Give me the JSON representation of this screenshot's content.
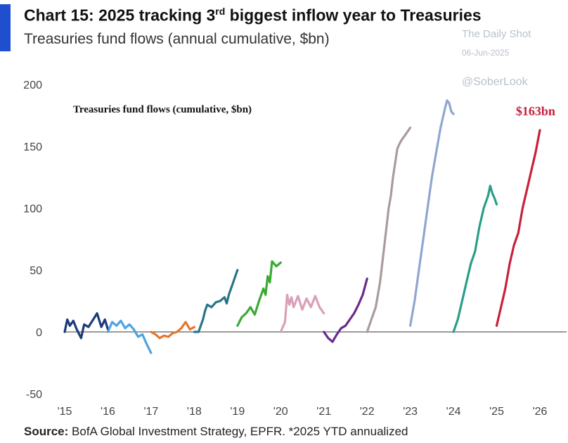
{
  "header": {
    "title_prefix": "Chart 15: 2025 tracking 3",
    "title_sup": "rd",
    "title_suffix": " biggest inflow year to Treasuries",
    "subtitle": "Treasuries fund flows (annual cumulative, $bn)"
  },
  "watermark": {
    "line1": "The Daily Shot",
    "line2": "06-Jun-2025",
    "line3": "@SoberLook"
  },
  "footer": {
    "source_label": "Source:",
    "source_text": " BofA Global Investment Strategy, EPFR. *2025 YTD annualized"
  },
  "chart_data": {
    "type": "line",
    "title": "Treasuries fund flows (cumulative, $bn)",
    "xlabel": "",
    "ylabel": "",
    "ylim": [
      -50,
      200
    ],
    "xlim": [
      2015,
      2026
    ],
    "yticks": [
      -50,
      0,
      50,
      100,
      150,
      200
    ],
    "xticks": [
      {
        "value": 2015,
        "label": "'15"
      },
      {
        "value": 2016,
        "label": "'16"
      },
      {
        "value": 2017,
        "label": "'17"
      },
      {
        "value": 2018,
        "label": "'18"
      },
      {
        "value": 2019,
        "label": "'19"
      },
      {
        "value": 2020,
        "label": "'20"
      },
      {
        "value": 2021,
        "label": "'21"
      },
      {
        "value": 2022,
        "label": "'22"
      },
      {
        "value": 2023,
        "label": "'23"
      },
      {
        "value": 2024,
        "label": "'24"
      },
      {
        "value": 2025,
        "label": "'25"
      },
      {
        "value": 2026,
        "label": "'26"
      }
    ],
    "grid": false,
    "zero_line": true,
    "annotation": {
      "text": "$163bn",
      "x": 2025.9,
      "y": 175,
      "color": "#c8203a"
    },
    "series": [
      {
        "color": "#1d3a7a",
        "x": [
          2015.0,
          2015.06,
          2015.12,
          2015.2,
          2015.28,
          2015.38,
          2015.45,
          2015.55,
          2015.66,
          2015.75,
          2015.85,
          2015.93,
          2016.0
        ],
        "y": [
          0,
          10,
          5,
          9,
          2,
          -5,
          6,
          4,
          10,
          15,
          4,
          10,
          2
        ]
      },
      {
        "color": "#4fa3e0",
        "x": [
          2016.0,
          2016.1,
          2016.2,
          2016.3,
          2016.4,
          2016.5,
          2016.6,
          2016.7,
          2016.8,
          2016.9,
          2017.0
        ],
        "y": [
          0,
          8,
          5,
          9,
          3,
          6,
          2,
          -4,
          -2,
          -10,
          -17
        ]
      },
      {
        "color": "#e6762b",
        "x": [
          2017.0,
          2017.1,
          2017.2,
          2017.3,
          2017.4,
          2017.5,
          2017.6,
          2017.7,
          2017.8,
          2017.9,
          2018.0
        ],
        "y": [
          0,
          -2,
          -5,
          -3,
          -4,
          -1,
          0,
          3,
          8,
          2,
          4
        ]
      },
      {
        "color": "#2a7489",
        "x": [
          2018.0,
          2018.1,
          2018.2,
          2018.25,
          2018.3,
          2018.4,
          2018.5,
          2018.6,
          2018.7,
          2018.75,
          2018.8,
          2018.9,
          2019.0
        ],
        "y": [
          0,
          0,
          10,
          17,
          22,
          20,
          24,
          25,
          28,
          23,
          30,
          40,
          50
        ]
      },
      {
        "color": "#3aaa35",
        "x": [
          2019.0,
          2019.1,
          2019.2,
          2019.3,
          2019.4,
          2019.5,
          2019.6,
          2019.65,
          2019.7,
          2019.75,
          2019.8,
          2019.9,
          2020.0
        ],
        "y": [
          5,
          12,
          15,
          20,
          14,
          25,
          35,
          30,
          45,
          40,
          57,
          53,
          56
        ]
      },
      {
        "color": "#d9a0b8",
        "x": [
          2020.0,
          2020.1,
          2020.15,
          2020.2,
          2020.25,
          2020.3,
          2020.4,
          2020.5,
          2020.6,
          2020.7,
          2020.8,
          2020.9,
          2021.0
        ],
        "y": [
          0,
          8,
          30,
          22,
          28,
          20,
          29,
          18,
          27,
          20,
          29,
          20,
          15
        ]
      },
      {
        "color": "#6a2a8a",
        "x": [
          2021.0,
          2021.1,
          2021.2,
          2021.3,
          2021.4,
          2021.5,
          2021.6,
          2021.7,
          2021.8,
          2021.9,
          2022.0
        ],
        "y": [
          0,
          -5,
          -8,
          -2,
          3,
          5,
          10,
          15,
          22,
          30,
          43
        ]
      },
      {
        "color": "#a89b9b",
        "x": [
          2022.0,
          2022.1,
          2022.2,
          2022.3,
          2022.4,
          2022.5,
          2022.55,
          2022.6,
          2022.7,
          2022.75,
          2022.8,
          2022.9,
          2023.0
        ],
        "y": [
          0,
          10,
          20,
          40,
          70,
          100,
          110,
          125,
          148,
          152,
          155,
          160,
          165
        ]
      },
      {
        "color": "#8fa6d0",
        "x": [
          2023.0,
          2023.1,
          2023.2,
          2023.3,
          2023.4,
          2023.5,
          2023.6,
          2023.7,
          2023.8,
          2023.85,
          2023.9,
          2023.95,
          2024.0
        ],
        "y": [
          5,
          25,
          50,
          75,
          100,
          125,
          145,
          165,
          180,
          187,
          185,
          178,
          176
        ]
      },
      {
        "color": "#2a9e8a",
        "x": [
          2024.0,
          2024.1,
          2024.2,
          2024.3,
          2024.4,
          2024.5,
          2024.6,
          2024.7,
          2024.8,
          2024.85,
          2024.9,
          2024.95,
          2025.0
        ],
        "y": [
          0,
          10,
          25,
          40,
          55,
          65,
          85,
          100,
          110,
          118,
          112,
          108,
          103
        ]
      },
      {
        "color": "#c8203a",
        "x": [
          2025.0,
          2025.1,
          2025.2,
          2025.3,
          2025.4,
          2025.5,
          2025.6,
          2025.7,
          2025.8,
          2025.9,
          2026.0
        ],
        "y": [
          5,
          20,
          35,
          55,
          70,
          80,
          100,
          115,
          130,
          145,
          163
        ]
      }
    ]
  }
}
